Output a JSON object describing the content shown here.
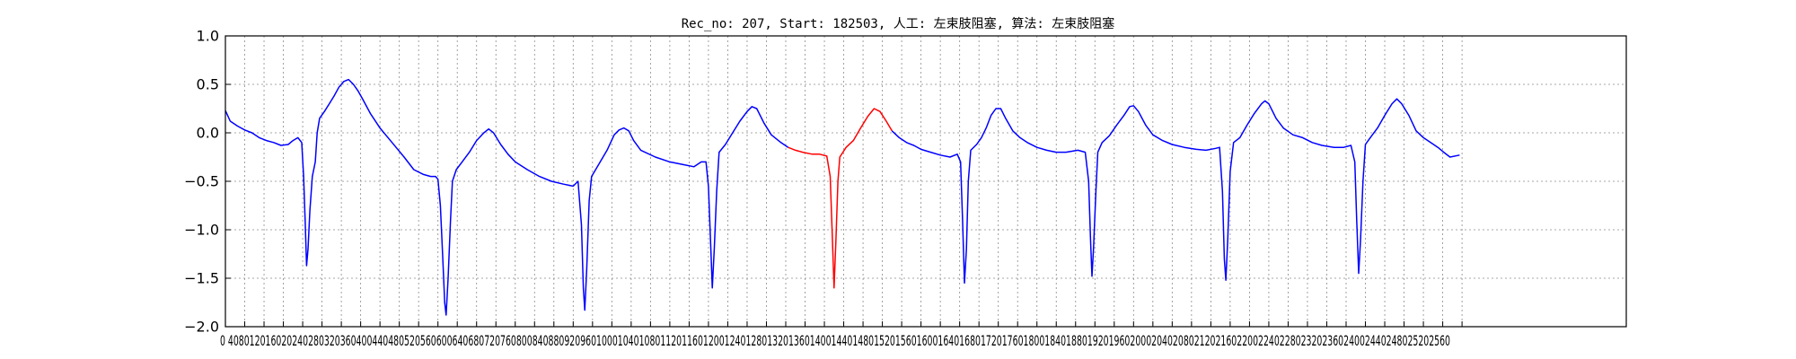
{
  "chart_data": {
    "type": "line",
    "title": "Rec_no: 207, Start: 182503, 人工: 左束肢阻塞, 算法: 左束肢阻塞",
    "xlabel": "",
    "ylabel": "",
    "xlim": [
      0,
      2900
    ],
    "ylim": [
      -2.0,
      1.0
    ],
    "grid": true,
    "yticks": [
      "1.0",
      "0.5",
      "0.0",
      "−0.5",
      "−1.0",
      "−1.5",
      "−2.0"
    ],
    "ytick_values": [
      1.0,
      0.5,
      0.0,
      -0.5,
      -1.0,
      -1.5,
      -2.0
    ],
    "xtick_label_text": "0 4080120160202402803203604004404805205606006406807207608008408809209601000104010801120116012001240128013201360140014401480152015601600164016801720176018001840188019201960200020402080212021602200224022802320236024002440248025202560",
    "colors": {
      "normal": "#0000ff",
      "highlight": "#ff0000"
    },
    "series": [
      {
        "color": "#0000ff",
        "points": [
          [
            0,
            0.23
          ],
          [
            10,
            0.12
          ],
          [
            25,
            0.07
          ],
          [
            40,
            0.03
          ],
          [
            55,
            0.0
          ],
          [
            70,
            -0.05
          ],
          [
            85,
            -0.08
          ],
          [
            100,
            -0.1
          ],
          [
            115,
            -0.13
          ],
          [
            130,
            -0.12
          ],
          [
            140,
            -0.08
          ],
          [
            150,
            -0.05
          ],
          [
            158,
            -0.1
          ],
          [
            162,
            -0.45
          ],
          [
            165,
            -0.9
          ],
          [
            168,
            -1.37
          ],
          [
            171,
            -1.2
          ],
          [
            175,
            -0.8
          ],
          [
            180,
            -0.45
          ],
          [
            186,
            -0.3
          ],
          [
            190,
            0.0
          ],
          [
            195,
            0.15
          ],
          [
            205,
            0.22
          ],
          [
            215,
            0.3
          ],
          [
            225,
            0.38
          ],
          [
            235,
            0.47
          ],
          [
            245,
            0.53
          ],
          [
            255,
            0.55
          ],
          [
            265,
            0.5
          ],
          [
            275,
            0.43
          ],
          [
            285,
            0.34
          ],
          [
            300,
            0.2
          ],
          [
            320,
            0.05
          ],
          [
            345,
            -0.1
          ],
          [
            370,
            -0.25
          ],
          [
            390,
            -0.38
          ],
          [
            410,
            -0.43
          ],
          [
            425,
            -0.45
          ],
          [
            435,
            -0.45
          ],
          [
            440,
            -0.48
          ],
          [
            445,
            -0.75
          ],
          [
            450,
            -1.3
          ],
          [
            454,
            -1.75
          ],
          [
            457,
            -1.88
          ],
          [
            461,
            -1.5
          ],
          [
            466,
            -0.9
          ],
          [
            470,
            -0.5
          ],
          [
            478,
            -0.38
          ],
          [
            490,
            -0.3
          ],
          [
            505,
            -0.2
          ],
          [
            520,
            -0.08
          ],
          [
            535,
            0.0
          ],
          [
            545,
            0.04
          ],
          [
            555,
            0.0
          ],
          [
            570,
            -0.12
          ],
          [
            585,
            -0.22
          ],
          [
            600,
            -0.3
          ],
          [
            625,
            -0.38
          ],
          [
            650,
            -0.45
          ],
          [
            675,
            -0.5
          ],
          [
            700,
            -0.53
          ],
          [
            720,
            -0.55
          ],
          [
            730,
            -0.5
          ],
          [
            737,
            -0.95
          ],
          [
            741,
            -1.6
          ],
          [
            744,
            -1.83
          ],
          [
            748,
            -1.4
          ],
          [
            753,
            -0.7
          ],
          [
            758,
            -0.45
          ],
          [
            770,
            -0.35
          ],
          [
            790,
            -0.18
          ],
          [
            805,
            -0.02
          ],
          [
            815,
            0.03
          ],
          [
            825,
            0.05
          ],
          [
            835,
            0.02
          ],
          [
            845,
            -0.08
          ],
          [
            860,
            -0.18
          ],
          [
            890,
            -0.25
          ],
          [
            920,
            -0.3
          ],
          [
            950,
            -0.33
          ],
          [
            970,
            -0.35
          ],
          [
            985,
            -0.3
          ],
          [
            995,
            -0.3
          ],
          [
            1000,
            -0.55
          ],
          [
            1005,
            -1.2
          ],
          [
            1008,
            -1.6
          ],
          [
            1012,
            -1.2
          ],
          [
            1017,
            -0.6
          ],
          [
            1022,
            -0.2
          ],
          [
            1035,
            -0.12
          ],
          [
            1050,
            0.0
          ],
          [
            1065,
            0.12
          ],
          [
            1080,
            0.22
          ],
          [
            1090,
            0.27
          ],
          [
            1100,
            0.25
          ],
          [
            1115,
            0.1
          ],
          [
            1130,
            -0.02
          ],
          [
            1150,
            -0.1
          ],
          [
            1165,
            -0.15
          ]
        ]
      },
      {
        "color": "#ff0000",
        "points": [
          [
            1165,
            -0.15
          ],
          [
            1180,
            -0.18
          ],
          [
            1195,
            -0.2
          ],
          [
            1215,
            -0.22
          ],
          [
            1230,
            -0.22
          ],
          [
            1245,
            -0.24
          ],
          [
            1252,
            -0.45
          ],
          [
            1256,
            -1.0
          ],
          [
            1260,
            -1.6
          ],
          [
            1264,
            -1.1
          ],
          [
            1268,
            -0.5
          ],
          [
            1272,
            -0.25
          ],
          [
            1285,
            -0.15
          ],
          [
            1300,
            -0.08
          ],
          [
            1315,
            0.05
          ],
          [
            1330,
            0.17
          ],
          [
            1343,
            0.25
          ],
          [
            1355,
            0.22
          ],
          [
            1368,
            0.12
          ],
          [
            1380,
            0.02
          ]
        ]
      },
      {
        "color": "#0000ff",
        "points": [
          [
            1380,
            0.02
          ],
          [
            1395,
            -0.05
          ],
          [
            1410,
            -0.1
          ],
          [
            1425,
            -0.13
          ],
          [
            1440,
            -0.17
          ],
          [
            1460,
            -0.2
          ],
          [
            1480,
            -0.23
          ],
          [
            1500,
            -0.25
          ],
          [
            1515,
            -0.22
          ],
          [
            1522,
            -0.3
          ],
          [
            1526,
            -0.9
          ],
          [
            1530,
            -1.55
          ],
          [
            1534,
            -1.2
          ],
          [
            1538,
            -0.5
          ],
          [
            1543,
            -0.18
          ],
          [
            1555,
            -0.12
          ],
          [
            1565,
            -0.05
          ],
          [
            1575,
            0.05
          ],
          [
            1585,
            0.18
          ],
          [
            1595,
            0.25
          ],
          [
            1605,
            0.25
          ],
          [
            1615,
            0.15
          ],
          [
            1630,
            0.02
          ],
          [
            1645,
            -0.05
          ],
          [
            1660,
            -0.1
          ],
          [
            1680,
            -0.15
          ],
          [
            1700,
            -0.18
          ],
          [
            1720,
            -0.2
          ],
          [
            1740,
            -0.2
          ],
          [
            1765,
            -0.18
          ],
          [
            1780,
            -0.2
          ],
          [
            1787,
            -0.5
          ],
          [
            1791,
            -1.1
          ],
          [
            1794,
            -1.48
          ],
          [
            1797,
            -1.2
          ],
          [
            1802,
            -0.6
          ],
          [
            1806,
            -0.2
          ],
          [
            1815,
            -0.1
          ],
          [
            1830,
            -0.03
          ],
          [
            1845,
            0.08
          ],
          [
            1860,
            0.18
          ],
          [
            1872,
            0.27
          ],
          [
            1880,
            0.28
          ],
          [
            1890,
            0.22
          ],
          [
            1905,
            0.08
          ],
          [
            1920,
            -0.02
          ],
          [
            1940,
            -0.08
          ],
          [
            1960,
            -0.12
          ],
          [
            1985,
            -0.15
          ],
          [
            2010,
            -0.17
          ],
          [
            2030,
            -0.18
          ],
          [
            2050,
            -0.16
          ],
          [
            2058,
            -0.15
          ],
          [
            2064,
            -0.6
          ],
          [
            2068,
            -1.3
          ],
          [
            2071,
            -1.52
          ],
          [
            2075,
            -1.1
          ],
          [
            2080,
            -0.4
          ],
          [
            2087,
            -0.1
          ],
          [
            2100,
            -0.05
          ],
          [
            2115,
            0.08
          ],
          [
            2130,
            0.2
          ],
          [
            2145,
            0.3
          ],
          [
            2152,
            0.33
          ],
          [
            2160,
            0.3
          ],
          [
            2175,
            0.15
          ],
          [
            2190,
            0.05
          ],
          [
            2210,
            -0.02
          ],
          [
            2230,
            -0.05
          ],
          [
            2250,
            -0.1
          ],
          [
            2270,
            -0.13
          ],
          [
            2295,
            -0.15
          ],
          [
            2315,
            -0.15
          ],
          [
            2330,
            -0.13
          ],
          [
            2338,
            -0.3
          ],
          [
            2342,
            -0.9
          ],
          [
            2346,
            -1.45
          ],
          [
            2350,
            -1.1
          ],
          [
            2355,
            -0.5
          ],
          [
            2360,
            -0.12
          ],
          [
            2370,
            -0.05
          ],
          [
            2385,
            0.05
          ],
          [
            2400,
            0.18
          ],
          [
            2415,
            0.3
          ],
          [
            2425,
            0.35
          ],
          [
            2435,
            0.3
          ],
          [
            2450,
            0.18
          ],
          [
            2465,
            0.02
          ],
          [
            2480,
            -0.05
          ],
          [
            2495,
            -0.1
          ],
          [
            2510,
            -0.15
          ],
          [
            2522,
            -0.2
          ],
          [
            2535,
            -0.25
          ],
          [
            2555,
            -0.23
          ]
        ]
      }
    ]
  }
}
